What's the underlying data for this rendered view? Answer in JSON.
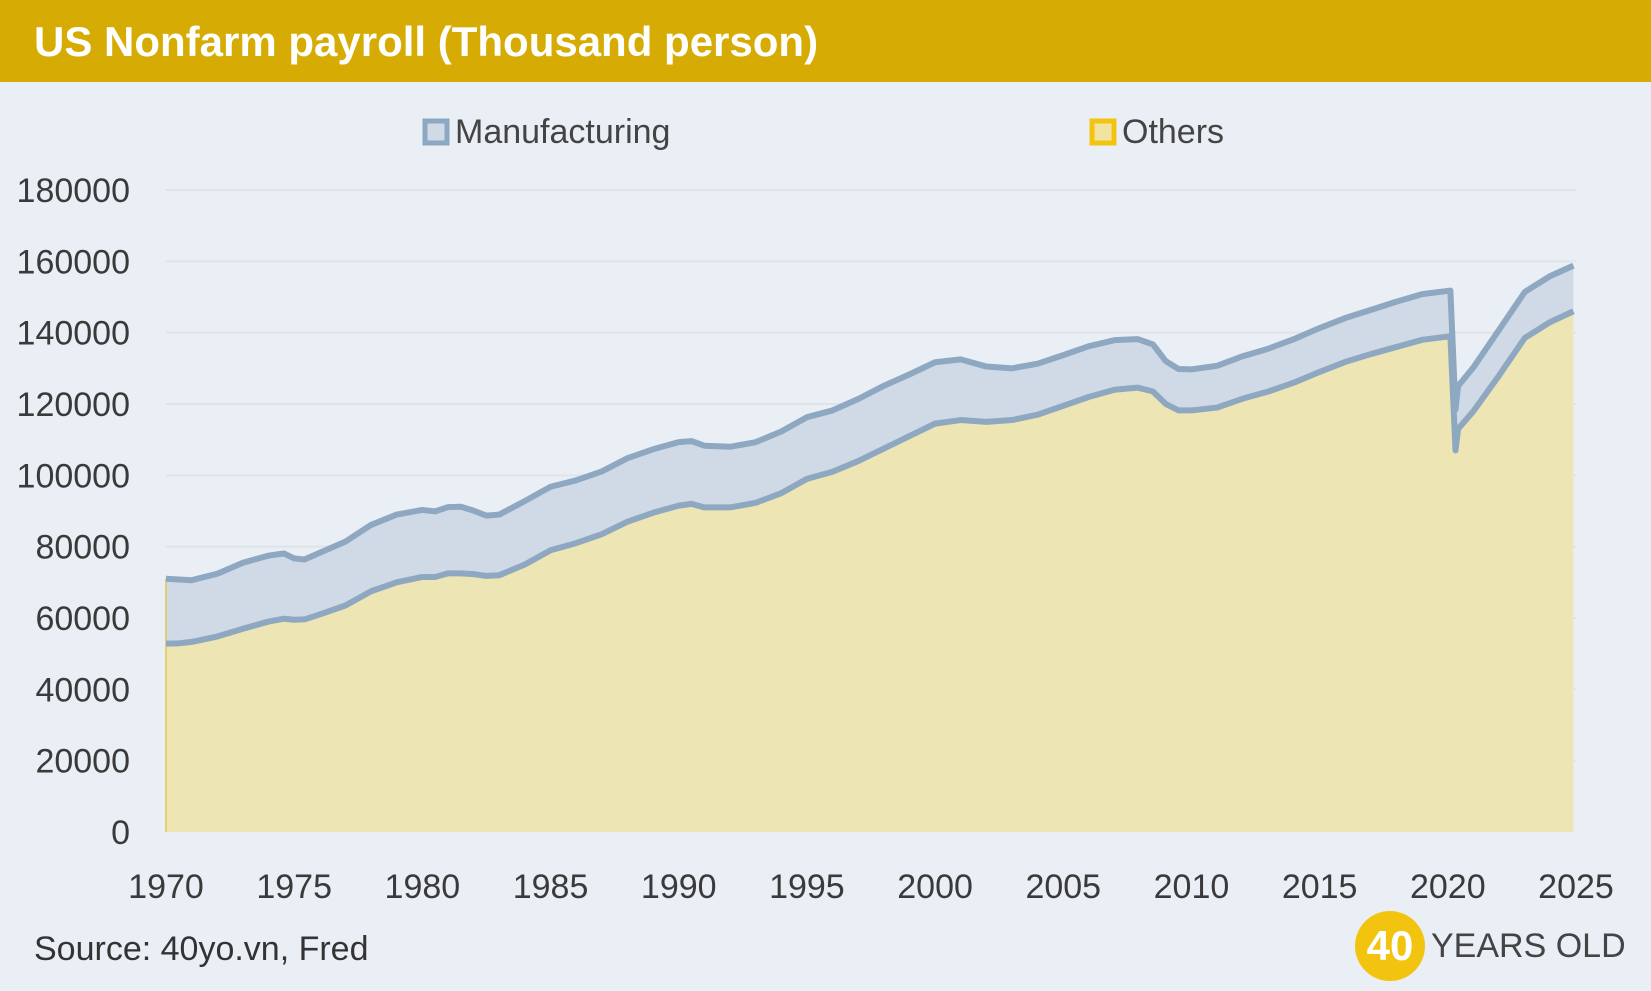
{
  "header": {
    "title": "US Nonfarm payroll (Thousand person)"
  },
  "footer": {
    "source": "Source: 40yo.vn, Fred"
  },
  "logo": {
    "number": "40",
    "text": "YEARS OLD"
  },
  "colors": {
    "header_bg": "#d6ac04",
    "background": "#e9eff5",
    "manufacturing_fill": "#cfdae6",
    "manufacturing_line": "#8ea8c2",
    "others_fill": "#ede5b4",
    "logo": "#f2c40f"
  },
  "chart_data": {
    "type": "area",
    "title": "US Nonfarm payroll (Thousand person)",
    "xlabel": "",
    "ylabel": "",
    "stacked": true,
    "xlim": [
      1970,
      2025
    ],
    "ylim": [
      0,
      180000
    ],
    "x_ticks": [
      1970,
      1975,
      1980,
      1985,
      1990,
      1995,
      2000,
      2005,
      2010,
      2015,
      2020,
      2025
    ],
    "y_ticks": [
      0,
      20000,
      40000,
      60000,
      80000,
      100000,
      120000,
      140000,
      160000,
      180000
    ],
    "grid": "horizontal",
    "legend": "top",
    "x": [
      1970,
      1970.5,
      1971,
      1972,
      1973,
      1974,
      1974.6,
      1975,
      1975.4,
      1976,
      1977,
      1978,
      1979,
      1980,
      1980.5,
      1981,
      1981.5,
      1982,
      1982.5,
      1983,
      1984,
      1985,
      1986,
      1987,
      1988,
      1989,
      1990,
      1990.5,
      1991,
      1992,
      1993,
      1994,
      1995,
      1996,
      1997,
      1998,
      1999,
      2000,
      2001,
      2002,
      2003,
      2004,
      2005,
      2006,
      2007,
      2007.9,
      2008.5,
      2009,
      2009.5,
      2010,
      2011,
      2012,
      2013,
      2014,
      2015,
      2016,
      2017,
      2018,
      2019,
      2020.1,
      2020.3,
      2020.4,
      2021,
      2022,
      2023,
      2024,
      2024.9
    ],
    "series": [
      {
        "name": "Manufacturing",
        "values": [
          18200,
          17900,
          17300,
          17600,
          18500,
          18500,
          18300,
          17200,
          16800,
          17300,
          17900,
          18600,
          19000,
          18800,
          18400,
          18600,
          18700,
          17800,
          16900,
          17000,
          17800,
          17800,
          17600,
          17600,
          17800,
          17800,
          17800,
          17600,
          17300,
          17000,
          17000,
          17300,
          17300,
          17200,
          17400,
          17600,
          17300,
          17200,
          17000,
          15500,
          14500,
          14300,
          14200,
          14200,
          13900,
          13600,
          13200,
          12000,
          11600,
          11500,
          11700,
          11900,
          12000,
          12200,
          12300,
          12300,
          12400,
          12700,
          12800,
          12800,
          11500,
          12000,
          12300,
          12800,
          12900,
          12900,
          12800
        ]
      },
      {
        "name": "Others",
        "values": [
          52800,
          52900,
          53300,
          54800,
          57000,
          59000,
          59800,
          59500,
          59600,
          61000,
          63500,
          67500,
          70000,
          71500,
          71500,
          72500,
          72500,
          72300,
          71800,
          72000,
          75000,
          79000,
          81000,
          83500,
          87000,
          89500,
          91500,
          92000,
          91000,
          91000,
          92300,
          95000,
          99000,
          101000,
          104000,
          107500,
          111000,
          114500,
          115500,
          115000,
          115500,
          117000,
          119500,
          122000,
          124000,
          124600,
          123500,
          120000,
          118200,
          118200,
          119000,
          121500,
          123500,
          126000,
          129000,
          131800,
          134000,
          136000,
          138000,
          139000,
          107000,
          113000,
          118000,
          128000,
          138500,
          143000,
          146000
        ]
      }
    ]
  }
}
